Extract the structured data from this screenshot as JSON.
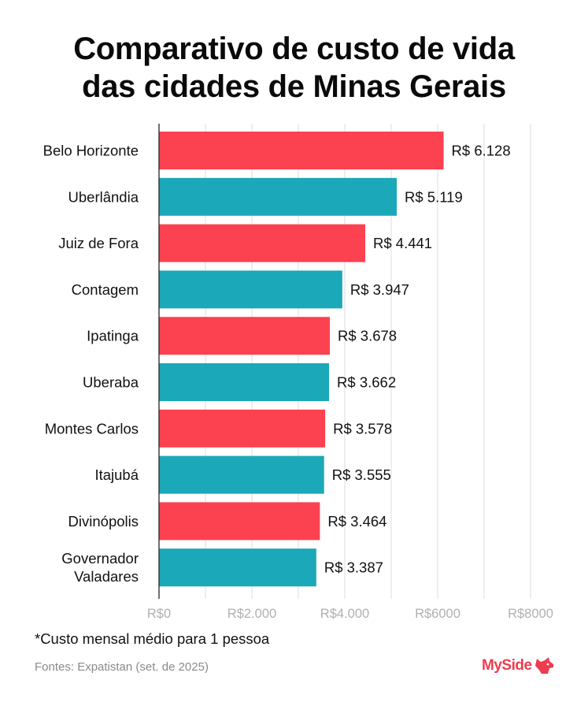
{
  "chart_data": {
    "type": "bar",
    "orientation": "horizontal",
    "title": [
      "Comparativo de custo de vida",
      "das cidades de Minas Gerais"
    ],
    "categories": [
      [
        "Belo Horizonte"
      ],
      [
        "Uberlândia"
      ],
      [
        "Juiz de Fora"
      ],
      [
        "Contagem"
      ],
      [
        "Ipatinga"
      ],
      [
        "Uberaba"
      ],
      [
        "Montes Carlos"
      ],
      [
        "Itajubá"
      ],
      [
        "Divinópolis"
      ],
      [
        "Governador",
        "Valadares"
      ]
    ],
    "values": [
      6128,
      5119,
      4441,
      3947,
      3678,
      3662,
      3578,
      3555,
      3464,
      3387
    ],
    "value_labels": [
      "R$ 6.128",
      "R$ 5.119",
      "R$ 4.441",
      "R$ 3.947",
      "R$ 3.678",
      "R$ 3.662",
      "R$ 3.578",
      "R$ 3.555",
      "R$ 3.464",
      "R$ 3.387"
    ],
    "bar_colors": [
      "#fc4150",
      "#1ba8b8"
    ],
    "xlim": [
      0,
      8000
    ],
    "x_ticks": [
      0,
      2000,
      4000,
      6000,
      8000
    ],
    "x_tick_labels": [
      "R$0",
      "R$2.000",
      "R$4.000",
      "R$6000",
      "R$8000"
    ],
    "grid": true
  },
  "footnote": "*Custo mensal médio para 1 pessoa",
  "source": "Fontes: Expatistan (set. de 2025)",
  "brand": {
    "name": "MySide",
    "color": "#ef3b4e",
    "icon": "dog-head-icon"
  }
}
